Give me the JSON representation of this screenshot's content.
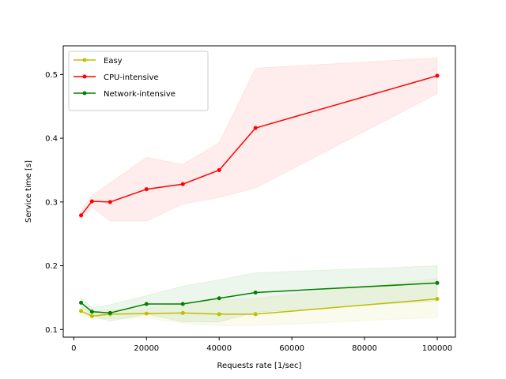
{
  "chart_data": {
    "type": "line",
    "title": "",
    "xlabel": "Requests rate [1/sec]",
    "ylabel": "Service time [s]",
    "xlim": [
      -2900,
      105000
    ],
    "ylim": [
      0.088,
      0.545
    ],
    "x_ticks": [
      0,
      20000,
      40000,
      60000,
      80000,
      100000
    ],
    "x_tick_labels": [
      "0",
      "20000",
      "40000",
      "60000",
      "80000",
      "100000"
    ],
    "y_ticks": [
      0.1,
      0.2,
      0.3,
      0.4,
      0.5
    ],
    "y_tick_labels": [
      "0.1",
      "0.2",
      "0.3",
      "0.4",
      "0.5"
    ],
    "grid": false,
    "legend_position": "upper-left",
    "x": [
      2000,
      5000,
      10000,
      20000,
      30000,
      40000,
      50000,
      100000
    ],
    "series": [
      {
        "name": "Easy",
        "color": "#bfbf00",
        "values": [
          0.129,
          0.121,
          0.124,
          0.125,
          0.126,
          0.124,
          0.124,
          0.148
        ],
        "band_low": [
          0.122,
          0.116,
          0.117,
          0.118,
          0.11,
          0.106,
          0.106,
          0.119
        ],
        "band_high": [
          0.136,
          0.128,
          0.131,
          0.133,
          0.142,
          0.146,
          0.149,
          0.18
        ]
      },
      {
        "name": "CPU-intensive",
        "color": "#ff0000",
        "values": [
          0.279,
          0.301,
          0.3,
          0.32,
          0.328,
          0.35,
          0.416,
          0.498
        ],
        "band_low": [
          0.272,
          0.292,
          0.27,
          0.27,
          0.297,
          0.307,
          0.322,
          0.47
        ],
        "band_high": [
          0.286,
          0.31,
          0.33,
          0.37,
          0.359,
          0.393,
          0.51,
          0.526
        ]
      },
      {
        "name": "Network-intensive",
        "color": "#008000",
        "values": [
          0.142,
          0.128,
          0.126,
          0.14,
          0.14,
          0.149,
          0.158,
          0.173
        ],
        "band_low": [
          0.135,
          0.122,
          0.113,
          0.124,
          0.112,
          0.112,
          0.127,
          0.145
        ],
        "band_high": [
          0.15,
          0.134,
          0.139,
          0.153,
          0.168,
          0.178,
          0.189,
          0.2
        ]
      }
    ]
  }
}
